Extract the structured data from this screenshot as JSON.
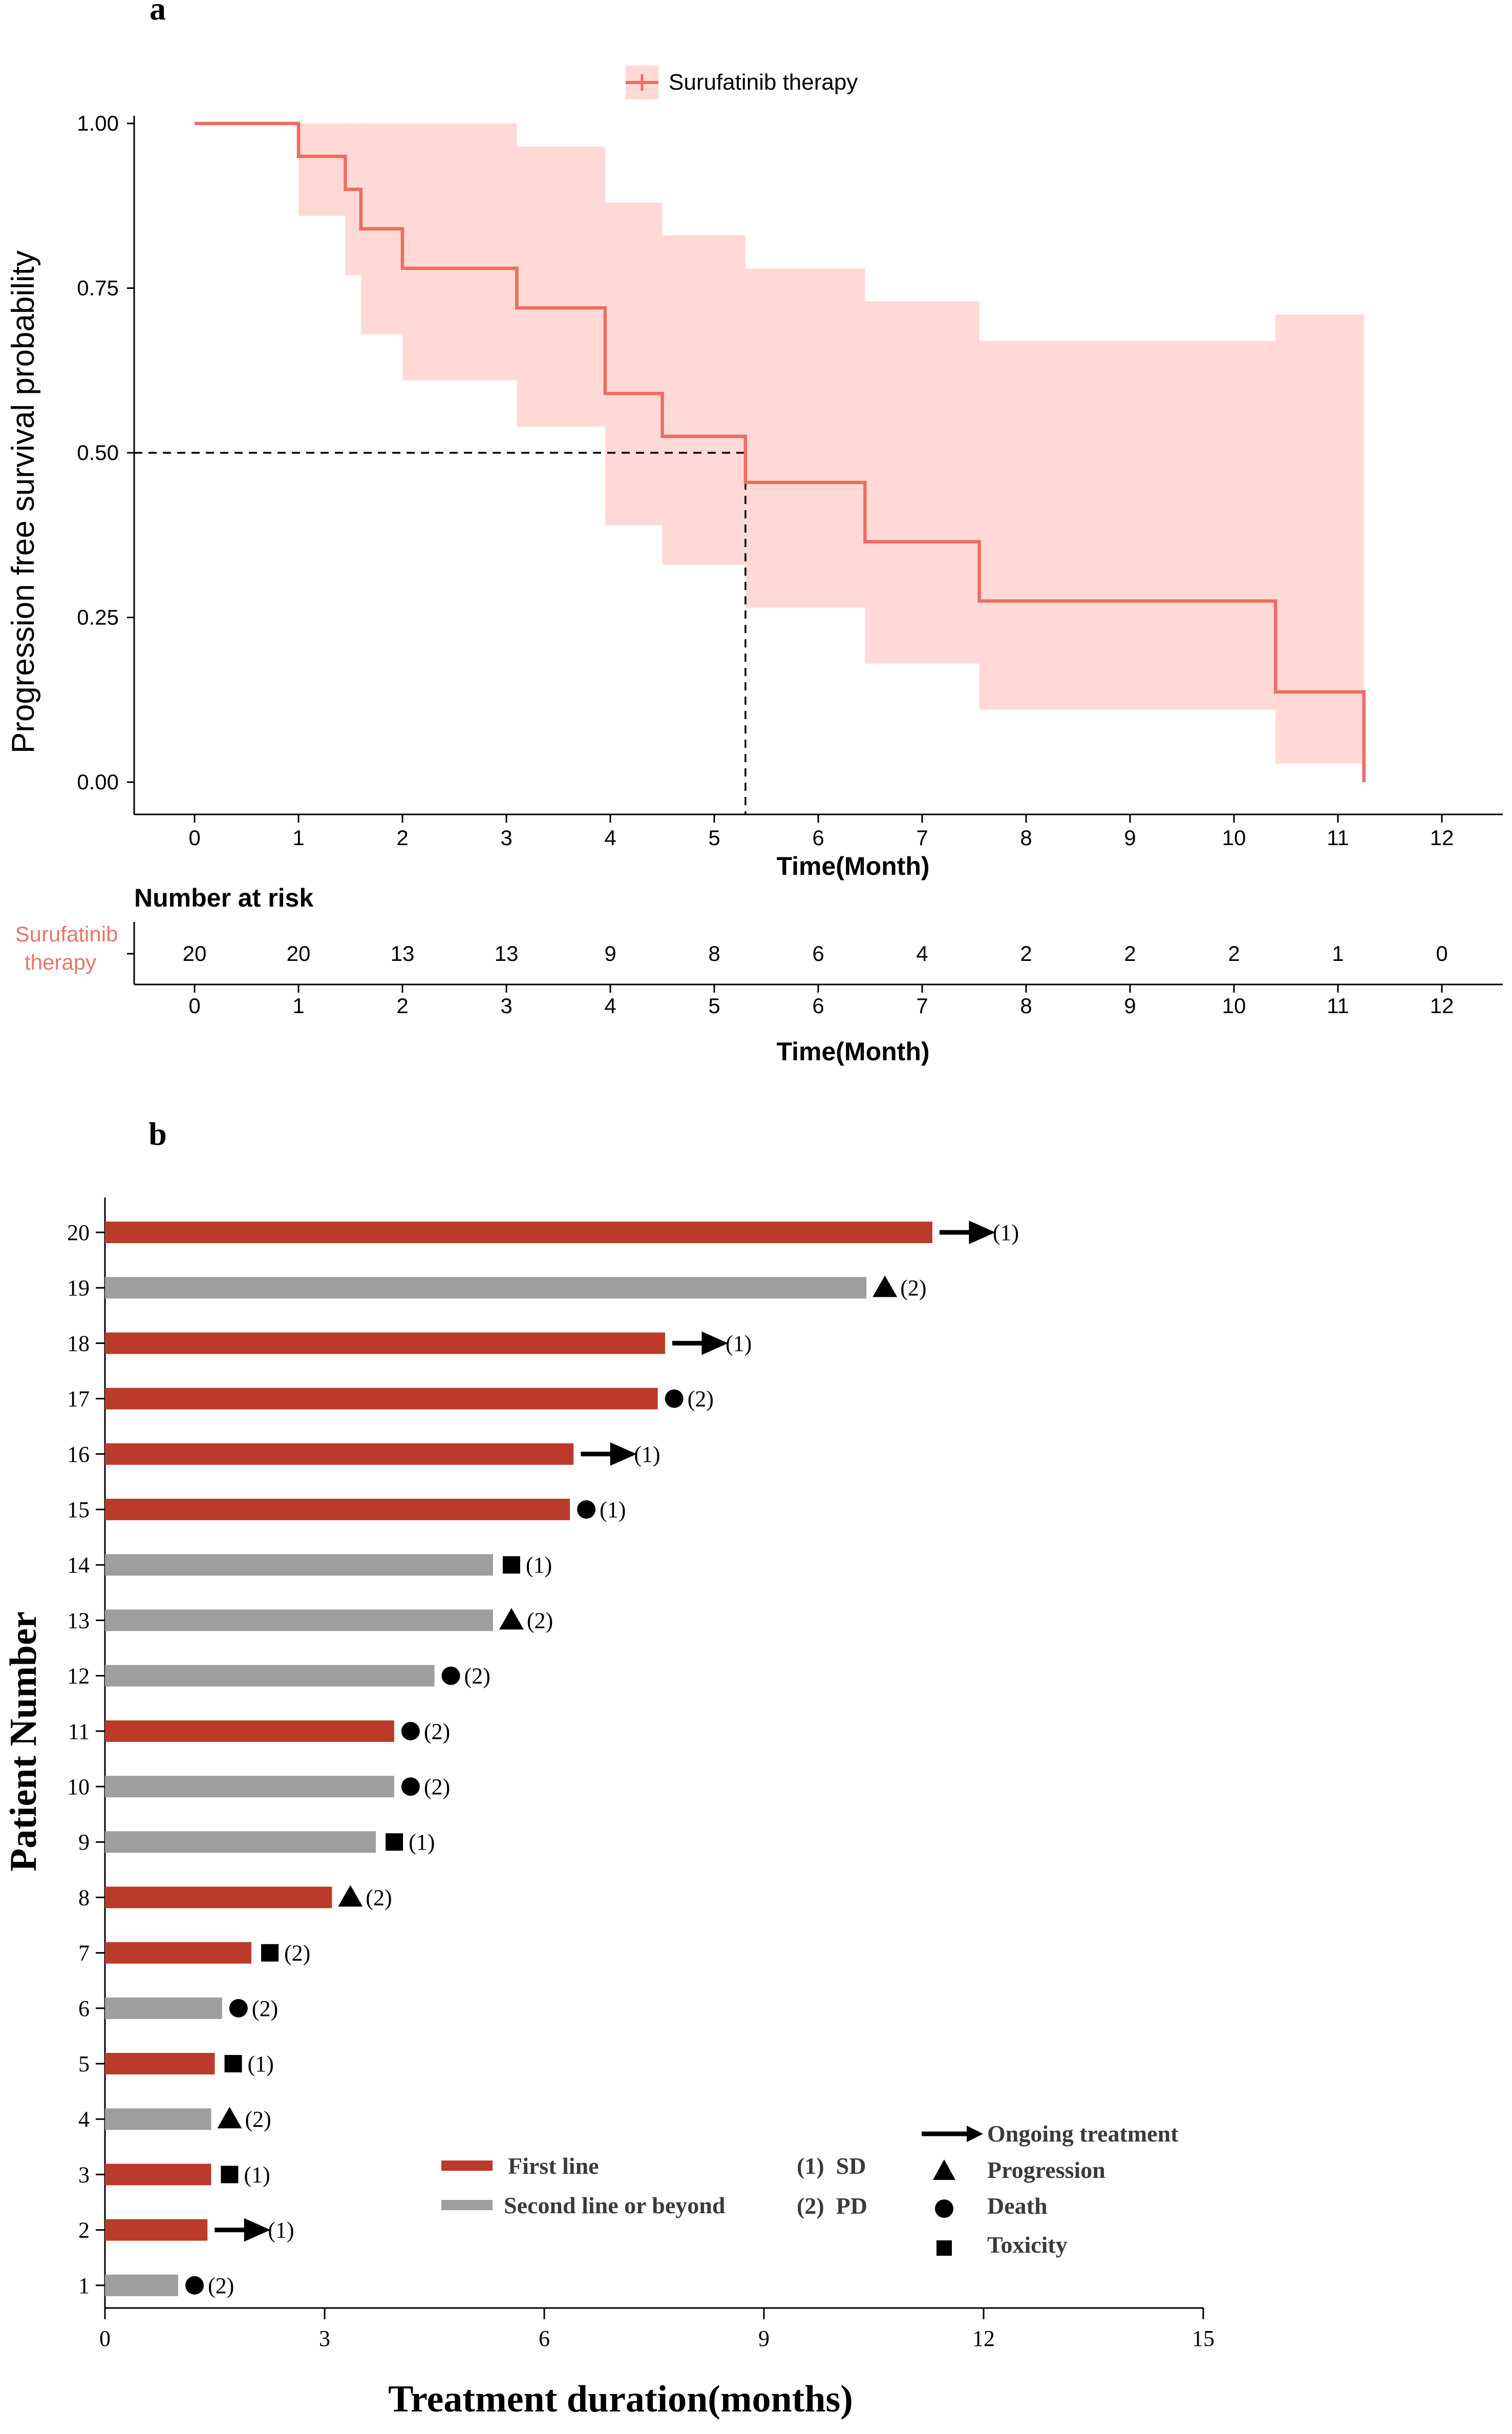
{
  "panel_a": {
    "label": "a",
    "legend_label": "Surufatinib therapy",
    "colors": {
      "curve": "#ee6b63",
      "band": "#ffd9d6",
      "axis": "#000000",
      "risk_label": "#e8756b"
    },
    "risk_table": {
      "title": "Number at risk",
      "row_label_line1": "Surufatinib",
      "row_label_line2": "therapy",
      "xlabel": "Time(Month)"
    }
  },
  "panel_b": {
    "label": "b",
    "colors": {
      "first_line": "#bb3a2a",
      "second_line": "#9e9e9e"
    },
    "legend": {
      "first_line": "First line",
      "second_line": "Second line or beyond",
      "sd": "(1)  SD",
      "pd": "(2)  PD",
      "ongoing": "Ongoing treatment",
      "progression": "Progression",
      "death": "Death",
      "toxicity": "Toxicity"
    }
  },
  "chart_data": [
    {
      "type": "line",
      "panel": "a",
      "title": "",
      "xlabel": "Time(Month)",
      "ylabel": "Progression free  survival probability",
      "xlim": [
        -0.6,
        12.6
      ],
      "ylim": [
        0,
        1
      ],
      "x_ticks": [
        0,
        1,
        2,
        3,
        4,
        5,
        6,
        7,
        8,
        9,
        10,
        11,
        12
      ],
      "y_ticks": [
        0,
        0.25,
        0.5,
        0.75,
        1.0
      ],
      "y_tick_labels": [
        "0.00",
        "0.25",
        "0.50",
        "0.75",
        "1.00"
      ],
      "series": [
        {
          "name": "Surufatinib therapy",
          "steps": [
            [
              0,
              1.0
            ],
            [
              1.0,
              0.95
            ],
            [
              1.45,
              0.9
            ],
            [
              1.6,
              0.84
            ],
            [
              2.0,
              0.78
            ],
            [
              3.1,
              0.72
            ],
            [
              3.95,
              0.59
            ],
            [
              4.5,
              0.525
            ],
            [
              5.3,
              0.455
            ],
            [
              6.45,
              0.365
            ],
            [
              7.55,
              0.275
            ],
            [
              10.4,
              0.137
            ],
            [
              11.25,
              0.0
            ]
          ],
          "end_x": 11.25,
          "ci_steps": [
            [
              1.0,
              0.86,
              1.0
            ],
            [
              1.45,
              0.77,
              1.0
            ],
            [
              1.6,
              0.68,
              1.0
            ],
            [
              2.0,
              0.61,
              1.0
            ],
            [
              3.1,
              0.54,
              0.965
            ],
            [
              3.95,
              0.39,
              0.88
            ],
            [
              4.5,
              0.33,
              0.83
            ],
            [
              5.3,
              0.265,
              0.78
            ],
            [
              6.45,
              0.18,
              0.73
            ],
            [
              7.55,
              0.11,
              0.67
            ],
            [
              10.4,
              0.028,
              0.71
            ]
          ],
          "ci_end_x": 11.25
        }
      ],
      "median_line": {
        "x": 5.3,
        "y": 0.5
      },
      "number_at_risk": {
        "times": [
          0,
          1,
          2,
          3,
          4,
          5,
          6,
          7,
          8,
          9,
          10,
          11,
          12
        ],
        "values": [
          20,
          20,
          13,
          13,
          9,
          8,
          6,
          4,
          2,
          2,
          2,
          1,
          0
        ]
      }
    },
    {
      "type": "bar",
      "orientation": "horizontal",
      "panel": "b",
      "xlabel": "Treatment duration(months)",
      "ylabel": "Patient Number",
      "xlim": [
        0,
        15
      ],
      "x_ticks": [
        0,
        3,
        6,
        9,
        12,
        15
      ],
      "categories": [
        1,
        2,
        3,
        4,
        5,
        6,
        7,
        8,
        9,
        10,
        11,
        12,
        13,
        14,
        15,
        16,
        17,
        18,
        19,
        20
      ],
      "values": [
        1.0,
        1.4,
        1.45,
        1.45,
        1.5,
        1.6,
        2.0,
        3.1,
        3.7,
        3.95,
        3.95,
        4.5,
        5.3,
        5.3,
        6.35,
        6.4,
        7.55,
        7.65,
        10.4,
        11.3
      ],
      "line": [
        "second",
        "first",
        "first",
        "second",
        "first",
        "second",
        "first",
        "first",
        "second",
        "second",
        "first",
        "second",
        "second",
        "second",
        "first",
        "first",
        "first",
        "first",
        "second",
        "first"
      ],
      "marker": [
        "death",
        "ongoing",
        "toxicity",
        "progression",
        "toxicity",
        "death",
        "toxicity",
        "progression",
        "toxicity",
        "death",
        "death",
        "death",
        "progression",
        "toxicity",
        "death",
        "ongoing",
        "death",
        "ongoing",
        "progression",
        "ongoing"
      ],
      "response": [
        "(2)",
        "(1)",
        "(1)",
        "(2)",
        "(1)",
        "(2)",
        "(2)",
        "(2)",
        "(1)",
        "(2)",
        "(2)",
        "(2)",
        "(2)",
        "(1)",
        "(1)",
        "(1)",
        "(2)",
        "(1)",
        "(2)",
        "(1)"
      ]
    }
  ]
}
